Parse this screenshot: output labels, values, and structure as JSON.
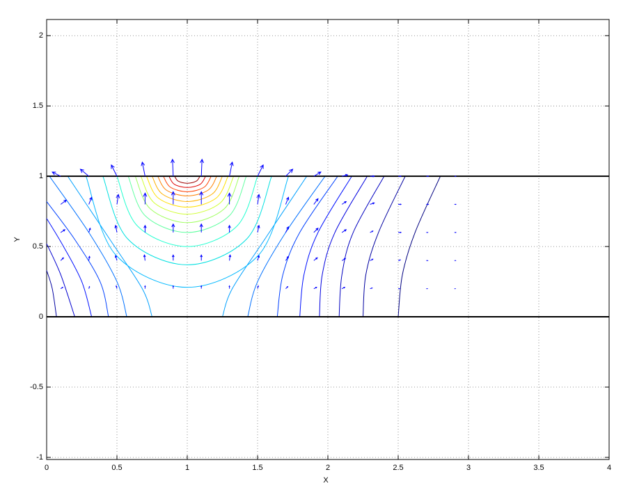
{
  "chart_data": {
    "type": "contour",
    "xlabel": "X",
    "ylabel": "Y",
    "xlim": [
      0,
      4
    ],
    "ylim": [
      -1.015,
      2.115
    ],
    "xticks": [
      0,
      0.5,
      1,
      1.5,
      2,
      2.5,
      3,
      3.5,
      4
    ],
    "yticks": [
      -1,
      -0.5,
      0,
      0.5,
      1,
      1.5,
      2
    ],
    "grid": true,
    "lines": [
      {
        "color": "#000000",
        "x": [
          0,
          4
        ],
        "y": [
          1,
          1
        ]
      },
      {
        "color": "#000000",
        "x": [
          0,
          4
        ],
        "y": [
          0,
          0
        ]
      }
    ],
    "contours": [
      {
        "color": "#000080",
        "x": [
          2.5,
          2.53,
          2.62,
          2.8
        ],
        "y": [
          0,
          0.3,
          0.6,
          1
        ]
      },
      {
        "color": "#0000a0",
        "x": [
          2.25,
          2.27,
          2.36,
          2.55
        ],
        "y": [
          0,
          0.3,
          0.6,
          1
        ]
      },
      {
        "color": "#0000c0",
        "x": [
          2.08,
          2.1,
          2.18,
          2.4
        ],
        "y": [
          0,
          0.3,
          0.6,
          1
        ]
      },
      {
        "color": "#0000e0",
        "x": [
          1.94,
          1.96,
          2.05,
          2.28
        ],
        "y": [
          0,
          0.3,
          0.6,
          1
        ]
      },
      {
        "color": "#0010ff",
        "x": [
          1.8,
          1.83,
          1.93,
          2.17
        ],
        "y": [
          0,
          0.3,
          0.6,
          1
        ]
      },
      {
        "color": "#0040ff",
        "x": [
          1.64,
          1.68,
          1.8,
          2.07
        ],
        "y": [
          0,
          0.3,
          0.6,
          1
        ]
      },
      {
        "color": "#0070ff",
        "x": [
          1.43,
          1.5,
          1.7,
          1.98
        ],
        "y": [
          0,
          0.25,
          0.6,
          1
        ]
      },
      {
        "color": "#00a0ff",
        "x": [
          1.25,
          1.32,
          1.55,
          1.85
        ],
        "y": [
          0,
          0.2,
          0.55,
          1
        ]
      },
      {
        "color": "#0000a0",
        "x": [
          0,
          0.04,
          0.07
        ],
        "y": [
          0.33,
          0.2,
          0
        ]
      },
      {
        "color": "#0000d0",
        "x": [
          0,
          0.1,
          0.2
        ],
        "y": [
          0.52,
          0.3,
          0
        ]
      },
      {
        "color": "#0010ff",
        "x": [
          0,
          0.12,
          0.25,
          0.32
        ],
        "y": [
          0.7,
          0.5,
          0.25,
          0
        ]
      },
      {
        "color": "#0040ff",
        "x": [
          0,
          0.2,
          0.38,
          0.44
        ],
        "y": [
          0.82,
          0.55,
          0.25,
          0
        ]
      },
      {
        "color": "#0070ff",
        "x": [
          0.02,
          0.3,
          0.5,
          0.57
        ],
        "y": [
          1,
          0.6,
          0.25,
          0
        ]
      },
      {
        "color": "#00a0ff",
        "x": [
          0.15,
          0.45,
          0.68,
          0.75
        ],
        "y": [
          1,
          0.55,
          0.2,
          0
        ]
      },
      {
        "color": "#00b8ff",
        "x": [
          0.28,
          0.491,
          1,
          1.509,
          1.72
        ],
        "y": [
          1,
          0.441,
          0.21,
          0.441,
          1
        ]
      },
      {
        "color": "#00e0e0",
        "x": [
          0.4,
          0.576,
          1,
          1.424,
          1.6
        ],
        "y": [
          1,
          0.555,
          0.37,
          0.555,
          1
        ]
      },
      {
        "color": "#20ffd0",
        "x": [
          0.5,
          0.646,
          1,
          1.354,
          1.5
        ],
        "y": [
          1,
          0.646,
          0.5,
          0.646,
          1
        ]
      },
      {
        "color": "#60ffa0",
        "x": [
          0.58,
          0.703,
          1,
          1.297,
          1.42
        ],
        "y": [
          1,
          0.717,
          0.6,
          0.717,
          1
        ]
      },
      {
        "color": "#a0ff60",
        "x": [
          0.63,
          0.738,
          1,
          1.262,
          1.37
        ],
        "y": [
          1,
          0.767,
          0.67,
          0.767,
          1
        ]
      },
      {
        "color": "#d0ff30",
        "x": [
          0.67,
          0.767,
          1,
          1.233,
          1.33
        ],
        "y": [
          1,
          0.809,
          0.73,
          0.809,
          1
        ]
      },
      {
        "color": "#ffe000",
        "x": [
          0.71,
          0.795,
          1,
          1.205,
          1.29
        ],
        "y": [
          1,
          0.844,
          0.78,
          0.844,
          1
        ]
      },
      {
        "color": "#ffb000",
        "x": [
          0.75,
          0.823,
          1,
          1.177,
          1.25
        ],
        "y": [
          1,
          0.873,
          0.82,
          0.873,
          1
        ]
      },
      {
        "color": "#ff8000",
        "x": [
          0.79,
          0.852,
          1,
          1.148,
          1.21
        ],
        "y": [
          1,
          0.901,
          0.86,
          0.901,
          1
        ]
      },
      {
        "color": "#ff4000",
        "x": [
          0.83,
          0.88,
          1,
          1.12,
          1.17
        ],
        "y": [
          1,
          0.922,
          0.89,
          0.922,
          1
        ]
      },
      {
        "color": "#e00000",
        "x": [
          0.87,
          0.908,
          1,
          1.092,
          1.13
        ],
        "y": [
          1,
          0.943,
          0.92,
          0.943,
          1
        ]
      },
      {
        "color": "#a00000",
        "x": [
          0.91,
          0.936,
          1,
          1.064,
          1.09
        ],
        "y": [
          1,
          0.965,
          0.95,
          0.965,
          1
        ]
      }
    ],
    "quiver": {
      "color": "#0000ff",
      "x": [
        0.1,
        0.3,
        0.5,
        0.7,
        0.9,
        1.1,
        1.3,
        1.5,
        1.7,
        1.9,
        2.1,
        2.3,
        2.5,
        2.7,
        2.9
      ],
      "y": [
        1,
        0.8,
        0.6,
        0.4,
        0.2
      ],
      "u": [
        [
          -0.06,
          -0.06,
          -0.04,
          -0.02,
          -0.005,
          0.005,
          0.02,
          0.04,
          0.05,
          0.05,
          0.04,
          0.03,
          0.02,
          0.015,
          0.01
        ],
        [
          0.04,
          0.02,
          0.01,
          0,
          0,
          0,
          0,
          0.01,
          0.02,
          0.03,
          0.03,
          0.03,
          0.02,
          0.015,
          0.01
        ],
        [
          0.03,
          0.01,
          -0.01,
          0,
          0,
          0,
          0,
          0.01,
          0.02,
          0.03,
          0.03,
          0.02,
          0.02,
          0.01,
          0.01
        ],
        [
          0.02,
          0.005,
          -0.01,
          -0.005,
          0,
          0,
          0.005,
          0.01,
          0.02,
          0.025,
          0.025,
          0.02,
          0.015,
          0.01,
          0.008
        ],
        [
          0.015,
          0.005,
          -0.005,
          0,
          0,
          0,
          0,
          0.005,
          0.015,
          0.02,
          0.02,
          0.015,
          0.01,
          0.008,
          0.006
        ]
      ],
      "v": [
        [
          0.03,
          0.05,
          0.08,
          0.1,
          0.12,
          0.12,
          0.1,
          0.08,
          0.05,
          0.03,
          0.01,
          0,
          0,
          0,
          0
        ],
        [
          0.03,
          0.05,
          0.07,
          0.08,
          0.09,
          0.09,
          0.08,
          0.07,
          0.05,
          0.04,
          0.02,
          0.01,
          0,
          0,
          0
        ],
        [
          0.02,
          0.03,
          0.05,
          0.05,
          0.06,
          0.06,
          0.05,
          0.05,
          0.04,
          0.03,
          0.02,
          0.01,
          0,
          0,
          0
        ],
        [
          0.02,
          0.03,
          0.035,
          0.04,
          0.04,
          0.04,
          0.04,
          0.035,
          0.03,
          0.02,
          0.015,
          0.01,
          0.005,
          0,
          0
        ],
        [
          0.01,
          0.015,
          0.02,
          0.02,
          0.02,
          0.02,
          0.02,
          0.02,
          0.015,
          0.01,
          0.01,
          0.005,
          0,
          0,
          0
        ]
      ]
    }
  }
}
